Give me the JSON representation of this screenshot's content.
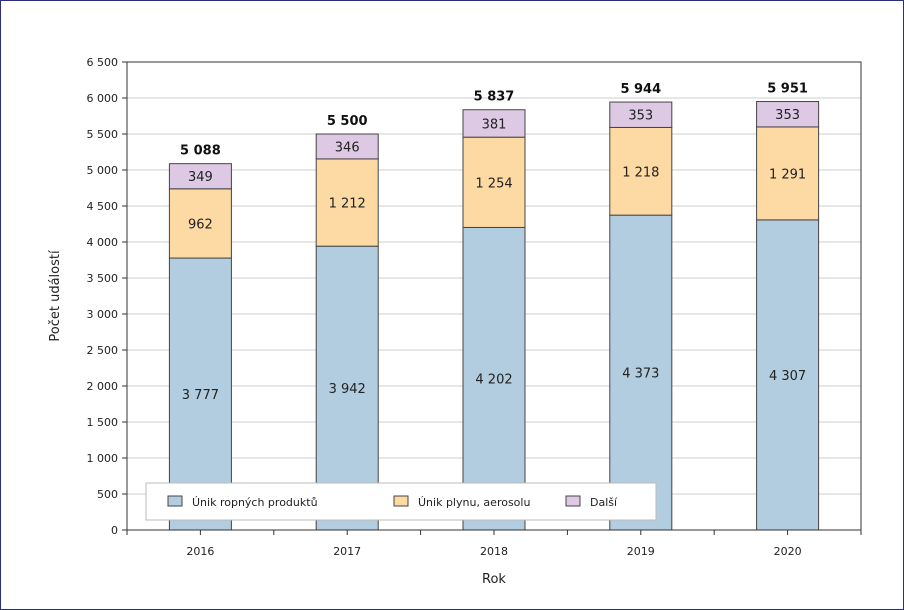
{
  "chart_data": {
    "type": "bar",
    "stacked": true,
    "categories": [
      "2016",
      "2017",
      "2018",
      "2019",
      "2020"
    ],
    "series": [
      {
        "name": "Únik ropných produktů",
        "values": [
          3777,
          3942,
          4202,
          4373,
          4307
        ],
        "labels": [
          "3 777",
          "3 942",
          "4 202",
          "4 373",
          "4 307"
        ],
        "color": "#b3cde0"
      },
      {
        "name": "Únik plynu, aerosolu",
        "values": [
          962,
          1212,
          1254,
          1218,
          1291
        ],
        "labels": [
          "962",
          "1 212",
          "1 254",
          "1 218",
          "1 291"
        ],
        "color": "#fdd9a3"
      },
      {
        "name": "Další",
        "values": [
          349,
          346,
          381,
          353,
          353
        ],
        "labels": [
          "349",
          "346",
          "381",
          "353",
          "353"
        ],
        "color": "#ddc9e3"
      }
    ],
    "totals": [
      5088,
      5500,
      5837,
      5944,
      5951
    ],
    "total_labels": [
      "5 088",
      "5 500",
      "5 837",
      "5 944",
      "5 951"
    ],
    "xlabel": "Rok",
    "ylabel": "Počet událostí",
    "ylim": [
      0,
      6500
    ],
    "yticks": [
      0,
      500,
      1000,
      1500,
      2000,
      2500,
      3000,
      3500,
      4000,
      4500,
      5000,
      5500,
      6000,
      6500
    ],
    "ytick_labels": [
      "0",
      "500",
      "1 000",
      "1 500",
      "2 000",
      "2 500",
      "3 000",
      "3 500",
      "4 000",
      "4 500",
      "5 000",
      "5 500",
      "6 000",
      "6 500"
    ],
    "grid": true,
    "legend_position": "bottom-left inside"
  }
}
